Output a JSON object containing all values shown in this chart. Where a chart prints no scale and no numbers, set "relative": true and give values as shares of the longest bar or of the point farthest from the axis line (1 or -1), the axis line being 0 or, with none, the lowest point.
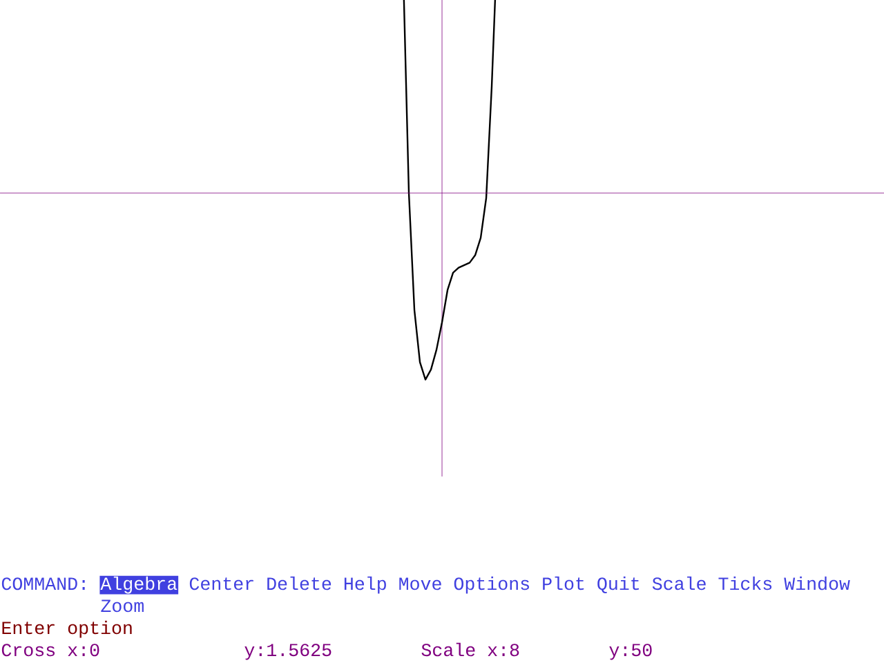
{
  "chart_data": {
    "type": "line",
    "relative": true,
    "categories": [
      null,
      null,
      null,
      null,
      null,
      null,
      null,
      null,
      null,
      null,
      null,
      null,
      null,
      null,
      null,
      null,
      null,
      null,
      null,
      null,
      null,
      null,
      null,
      null,
      null,
      null,
      null,
      null,
      null,
      null,
      null,
      null,
      null,
      null,
      null,
      null,
      null,
      null,
      null,
      null,
      null,
      null,
      null,
      null,
      null,
      null,
      null,
      null,
      null,
      null,
      null,
      null,
      null,
      null,
      null,
      null,
      null,
      null,
      null,
      null,
      null,
      null,
      null,
      null,
      null,
      null,
      null,
      null,
      null,
      null,
      null,
      null,
      null,
      null,
      null,
      null,
      null,
      null,
      null,
      null,
      null,
      null,
      null,
      null,
      null,
      null,
      null,
      null,
      null,
      null,
      null,
      null,
      null,
      null,
      null,
      null,
      null,
      null,
      null,
      null,
      null,
      null,
      null,
      null,
      null,
      null,
      null,
      null,
      null,
      null,
      null,
      null,
      null,
      null,
      null,
      null,
      null,
      null,
      null,
      null,
      null,
      null,
      null,
      null,
      null,
      null,
      null,
      null,
      null,
      null,
      null,
      null,
      null,
      null,
      null,
      null,
      null,
      null,
      null,
      null,
      null,
      null,
      null,
      null,
      null,
      null,
      null,
      null,
      null,
      null,
      null,
      null,
      null,
      null,
      null,
      null,
      null,
      null,
      null,
      null,
      null
    ],
    "series": [
      {
        "color": "#000000",
        "values": [
          null,
          null,
          null,
          null,
          null,
          null,
          null,
          null,
          null,
          null,
          null,
          null,
          null,
          null,
          null,
          null,
          null,
          null,
          null,
          null,
          null,
          null,
          null,
          null,
          null,
          null,
          null,
          null,
          null,
          null,
          null,
          null,
          null,
          null,
          null,
          null,
          null,
          null,
          null,
          null,
          null,
          null,
          null,
          null,
          null,
          null,
          null,
          null,
          null,
          null,
          null,
          null,
          null,
          null,
          null,
          null,
          null,
          null,
          null,
          null,
          null,
          null,
          null,
          null,
          null,
          null,
          null,
          null,
          null,
          null,
          null,
          null,
          null,
          0.87,
          0,
          -0.47,
          -0.68,
          -0.75,
          -0.71,
          -0.63,
          -0.52,
          -0.39,
          -0.32,
          -0.3,
          -0.29,
          -0.28,
          -0.25,
          -0.18,
          -0.02,
          0.43,
          1,
          null,
          null,
          null,
          null,
          null,
          null,
          null,
          null,
          null,
          null,
          null,
          null,
          null,
          null,
          null,
          null,
          null,
          null,
          null,
          null,
          null,
          null,
          null,
          null,
          null,
          null,
          null,
          null,
          null,
          null,
          null,
          null,
          null,
          null,
          null,
          null,
          null,
          null,
          null,
          null,
          null,
          null,
          null,
          null,
          null,
          null,
          null,
          null,
          null,
          null,
          null,
          null,
          null,
          null,
          null,
          null,
          null,
          null,
          null,
          null,
          null,
          null,
          null,
          null,
          null,
          null,
          null,
          null,
          null,
          null
        ]
      }
    ],
    "ref_lines": [
      {
        "axis": "y",
        "value": 0,
        "color": "#800080"
      }
    ],
    "annotations": [
      "COMMAND:",
      "Algebra",
      "Center Delete Help Move Options Plot Quit Scale Ticks Window",
      "Zoom",
      "Enter option",
      "Cross x:0",
      "y:1.5625",
      "Scale x:8",
      "y:50"
    ]
  }
}
